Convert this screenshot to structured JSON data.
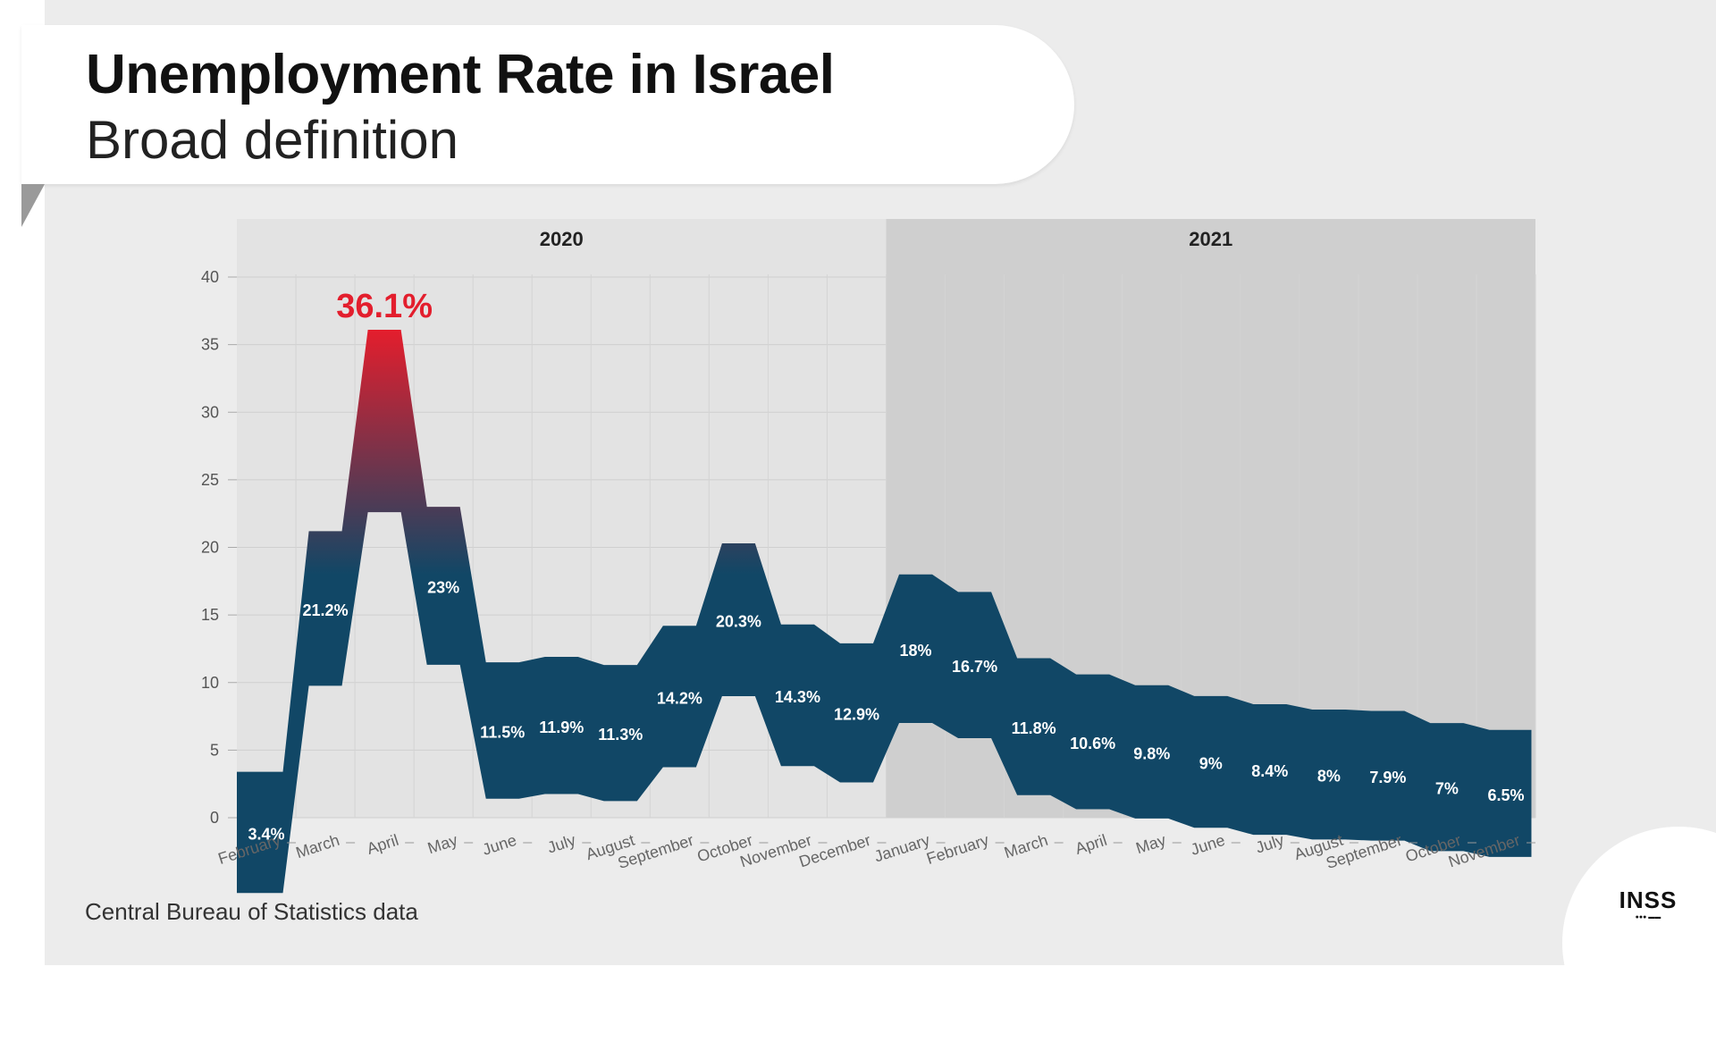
{
  "title": "Unemployment Rate in Israel",
  "subtitle": "Broad definition",
  "source": "Central Bureau of Statistics data",
  "logo": {
    "name": "INSS"
  },
  "chart_data": {
    "type": "area",
    "title": "Unemployment Rate in Israel",
    "subtitle": "Broad definition",
    "xlabel": "",
    "ylabel": "",
    "ylim": [
      0,
      40
    ],
    "yticks": [
      0,
      5,
      10,
      15,
      20,
      25,
      30,
      35,
      40
    ],
    "grid": true,
    "year_groups": [
      {
        "label": "2020",
        "start": 0,
        "end": 11
      },
      {
        "label": "2021",
        "start": 11,
        "end": 22
      }
    ],
    "categories": [
      "February",
      "March",
      "April",
      "May",
      "June",
      "July",
      "August",
      "September",
      "October",
      "November",
      "December",
      "January",
      "February",
      "March",
      "April",
      "May",
      "June",
      "July",
      "August",
      "September",
      "October",
      "November"
    ],
    "values": [
      3.4,
      21.2,
      36.1,
      23,
      11.5,
      11.9,
      11.3,
      14.2,
      20.3,
      14.3,
      12.9,
      18,
      16.7,
      11.8,
      10.6,
      9.8,
      9,
      8.4,
      8,
      7.9,
      7,
      6.5
    ],
    "labels": [
      "3.4%",
      "21.2%",
      "36.1%",
      "23%",
      "11.5%",
      "11.9%",
      "11.3%",
      "14.2%",
      "20.3%",
      "14.3%",
      "12.9%",
      "18%",
      "16.7%",
      "11.8%",
      "10.6%",
      "9.8%",
      "9%",
      "8.4%",
      "8%",
      "7.9%",
      "7%",
      "6.5%"
    ],
    "highlight_index": 2,
    "colors": {
      "band": "#114766",
      "peak": "#e31e2d",
      "highlight_text": "#e31e2d",
      "label_text": "#ffffff"
    }
  }
}
